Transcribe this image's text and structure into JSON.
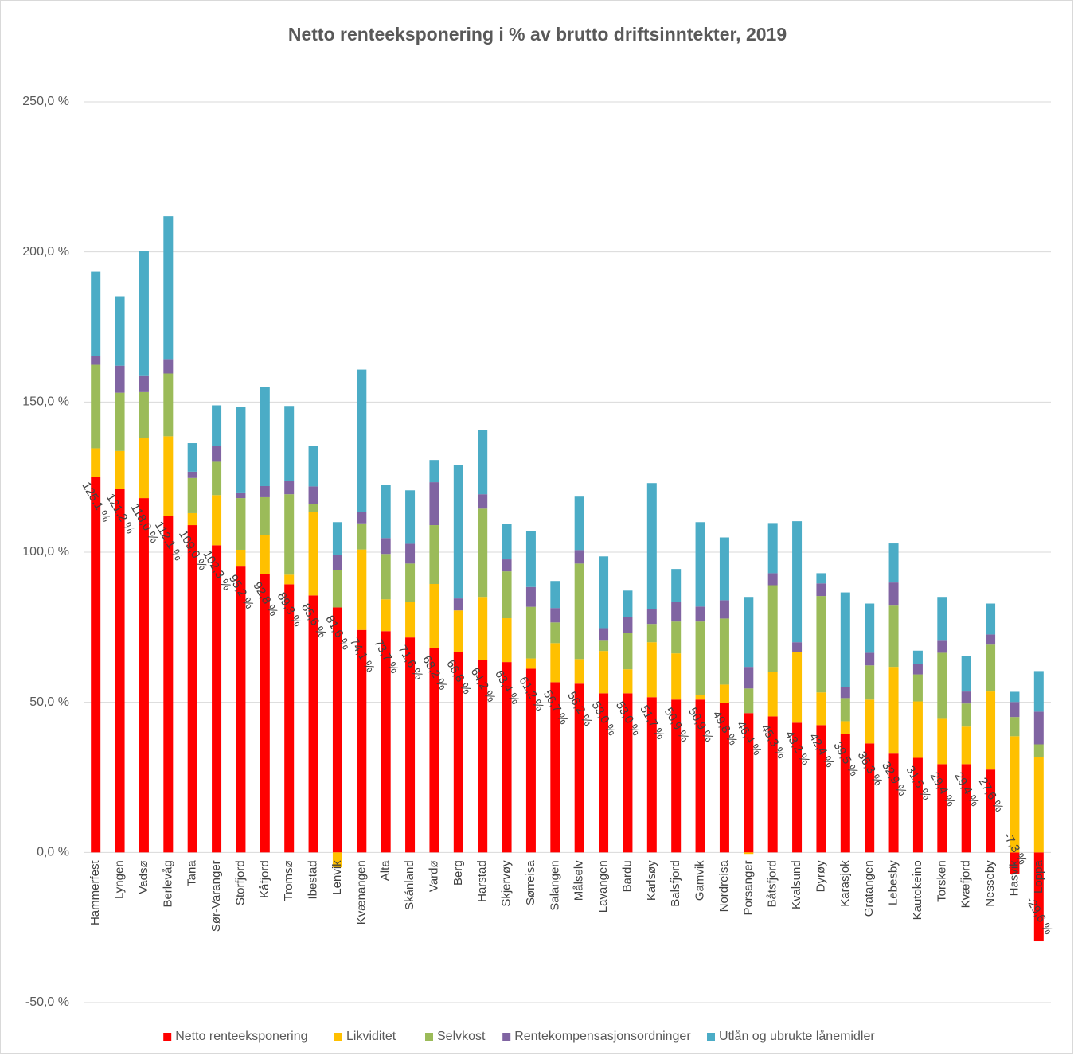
{
  "chart_data": {
    "type": "bar",
    "stacked": true,
    "title": "Netto renteeksponering i % av brutto driftsinntekter, 2019",
    "categories": [
      "Hammerfest",
      "Lyngen",
      "Vadsø",
      "Berlevåg",
      "Tana",
      "Sør-Varanger",
      "Storfjord",
      "Kåfjord",
      "Tromsø",
      "Ibestad",
      "Lenvik",
      "Kvænangen",
      "Alta",
      "Skånland",
      "Vardø",
      "Berg",
      "Harstad",
      "Skjervøy",
      "Sørreisa",
      "Salangen",
      "Målselv",
      "Lavangen",
      "Bardu",
      "Karlsøy",
      "Balsfjord",
      "Gamvik",
      "Nordreisa",
      "Porsanger",
      "Båtsfjord",
      "Kvalsund",
      "Dyrøy",
      "Karasjok",
      "Gratangen",
      "Lebesby",
      "Kautokeino",
      "Torsken",
      "Kvæfjord",
      "Nesseby",
      "Hasvik",
      "Loppa"
    ],
    "series": [
      {
        "name": "Netto renteeksponering",
        "color": "#ff0000",
        "values": [
          125.1,
          121.2,
          118.0,
          112.1,
          109.0,
          102.3,
          95.2,
          92.8,
          89.3,
          85.6,
          81.6,
          74.1,
          73.7,
          71.6,
          68.2,
          66.8,
          64.2,
          63.4,
          61.2,
          56.7,
          56.2,
          53.0,
          53.0,
          51.7,
          50.9,
          50.9,
          49.8,
          46.4,
          45.3,
          43.2,
          42.4,
          39.5,
          36.3,
          32.9,
          31.5,
          29.4,
          29.4,
          27.6,
          -7.3,
          -29.6
        ],
        "value_labels": [
          "125,1 %",
          "121,2 %",
          "118,0 %",
          "112,1 %",
          "109,0 %",
          "102,3 %",
          "95,2 %",
          "92,8 %",
          "89,3 %",
          "85,6 %",
          "81,6 %",
          "74,1 %",
          "73,7 %",
          "71,6 %",
          "68,2 %",
          "66,8 %",
          "64,2 %",
          "63,4 %",
          "61,2 %",
          "56,7 %",
          "56,2 %",
          "53,0 %",
          "53,0 %",
          "51,7 %",
          "50,9 %",
          "50,9 %",
          "49,8 %",
          "46,4 %",
          "45,3 %",
          "43,2 %",
          "42,4 %",
          "39,5 %",
          "36,3 %",
          "32,9 %",
          "31,5 %",
          "29,4 %",
          "29,4 %",
          "27,6 %",
          "-7,3 %",
          "-29,6 %"
        ]
      },
      {
        "name": "Likviditet",
        "color": "#ffc000",
        "values": [
          9.5,
          12.5,
          19.9,
          26.5,
          4.0,
          16.7,
          5.6,
          13.0,
          3.2,
          27.8,
          -5.0,
          26.8,
          10.6,
          11.9,
          21.2,
          13.8,
          20.9,
          14.6,
          3.4,
          13.0,
          8.2,
          14.1,
          8.0,
          18.3,
          15.4,
          1.6,
          6.1,
          -0.5,
          14.8,
          23.6,
          10.9,
          4.2,
          14.6,
          28.9,
          18.8,
          15.1,
          12.5,
          26.0,
          38.7,
          31.8
        ]
      },
      {
        "name": "Selvkost",
        "color": "#9bbb59",
        "values": [
          27.8,
          19.4,
          15.4,
          20.9,
          11.7,
          11.1,
          17.2,
          12.5,
          26.8,
          2.7,
          12.5,
          8.7,
          15.1,
          12.7,
          19.6,
          0,
          29.4,
          15.6,
          17.2,
          6.9,
          31.8,
          3.4,
          12.2,
          6.1,
          10.6,
          24.4,
          22.0,
          8.2,
          28.9,
          0,
          32.1,
          7.7,
          11.4,
          20.4,
          9.0,
          22.0,
          7.7,
          15.6,
          6.4,
          4.2
        ]
      },
      {
        "name": "Rentekompensasjonsordninger",
        "color": "#8064a2",
        "values": [
          2.9,
          9.0,
          5.6,
          4.8,
          2.1,
          5.3,
          1.9,
          3.7,
          4.5,
          5.8,
          5.0,
          3.7,
          5.3,
          6.6,
          14.3,
          4.0,
          4.8,
          4.0,
          6.6,
          4.8,
          4.5,
          4.2,
          5.3,
          5.0,
          6.6,
          5.0,
          6.1,
          7.2,
          4.0,
          3.2,
          4.2,
          3.7,
          4.2,
          7.7,
          3.4,
          4.0,
          4.0,
          3.4,
          5.0,
          10.9
        ]
      },
      {
        "name": "Utlån og ubrukte lånemidler",
        "color": "#4bacc6",
        "values": [
          28.1,
          23.1,
          41.4,
          47.5,
          9.5,
          13.5,
          28.4,
          32.9,
          24.9,
          13.5,
          10.9,
          47.5,
          17.8,
          17.8,
          7.4,
          44.5,
          21.5,
          11.9,
          18.6,
          9.0,
          17.8,
          23.9,
          8.7,
          41.9,
          10.9,
          28.1,
          20.9,
          23.3,
          16.7,
          40.3,
          3.4,
          31.5,
          16.4,
          13.0,
          4.5,
          14.6,
          11.9,
          10.3,
          3.4,
          13.5
        ]
      }
    ],
    "ylim": [
      -50,
      250
    ],
    "yticks": [
      {
        "value": -50,
        "label": "-50,0 %"
      },
      {
        "value": 0,
        "label": "0,0 %"
      },
      {
        "value": 50,
        "label": "50,0 %"
      },
      {
        "value": 100,
        "label": "100,0 %"
      },
      {
        "value": 150,
        "label": "150,0 %"
      },
      {
        "value": 200,
        "label": "200,0 %"
      },
      {
        "value": 250,
        "label": "250,0 %"
      }
    ],
    "grid": true,
    "legend": "bottom"
  }
}
